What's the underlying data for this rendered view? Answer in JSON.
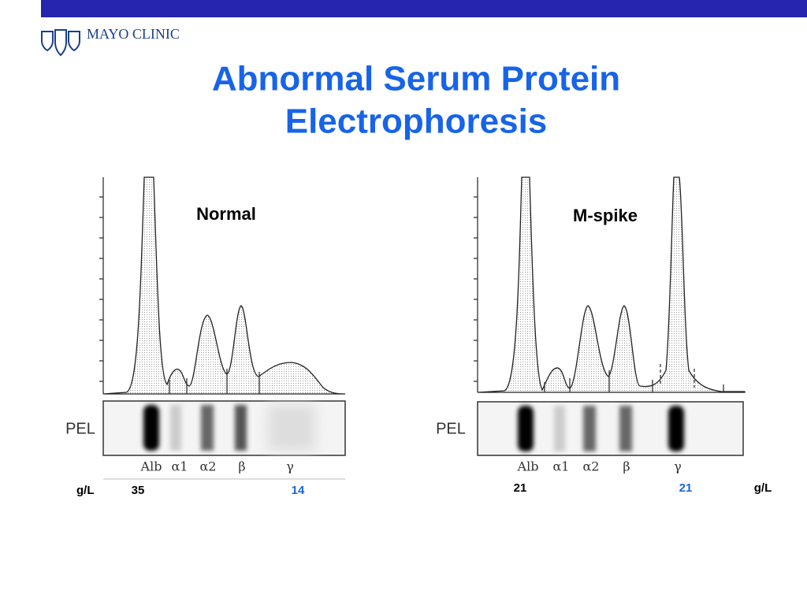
{
  "header": {
    "logo": "MAYO CLINIC",
    "title": [
      "Abnormal Serum Protein",
      "Electrophoresis"
    ]
  },
  "panels": [
    {
      "label": "Normal",
      "pel": "PEL",
      "fractions": [
        "Alb",
        "α1",
        "α2",
        "β",
        "γ"
      ],
      "unit": "g/L",
      "albumin": "35",
      "gamma": "14"
    },
    {
      "label": "M-spike",
      "pel": "PEL",
      "fractions": [
        "Alb",
        "α1",
        "α2",
        "β",
        "γ"
      ],
      "unit": "g/L",
      "albumin": "21",
      "gamma": "21"
    }
  ]
}
